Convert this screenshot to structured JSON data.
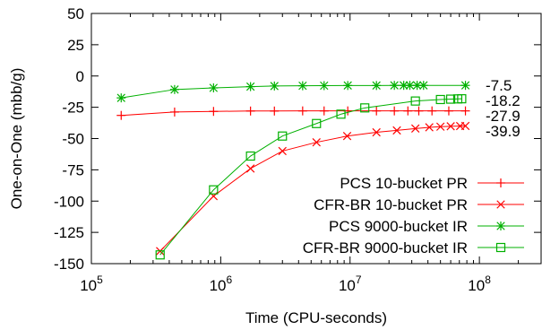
{
  "chart_data": {
    "type": "line",
    "xlabel": "Time (CPU-seconds)",
    "ylabel": "One-on-One (mbb/g)",
    "xscale": "log",
    "xlim": [
      100000,
      300000000
    ],
    "ylim": [
      -150,
      50
    ],
    "yticks": [
      50,
      25,
      0,
      -25,
      -50,
      -75,
      -100,
      -125,
      -150
    ],
    "xticks": [
      {
        "value": 100000,
        "base": "10",
        "exp": "5"
      },
      {
        "value": 1000000,
        "base": "10",
        "exp": "6"
      },
      {
        "value": 10000000,
        "base": "10",
        "exp": "7"
      },
      {
        "value": 100000000,
        "base": "10",
        "exp": "8"
      }
    ],
    "grid": false,
    "legend_position": "bottom-right",
    "series": [
      {
        "name": "PCS 10-bucket PR",
        "color": "#ff0000",
        "marker": "plus",
        "end_label": "-27.9",
        "x": [
          170000,
          440000,
          880000,
          1700000,
          2600000,
          4300000,
          6300000,
          9600000,
          16000000,
          22000000,
          28000000,
          34000000,
          43000000,
          58000000,
          78000000
        ],
        "y": [
          -31.5,
          -28.8,
          -28.3,
          -28.0,
          -28.0,
          -27.9,
          -27.9,
          -27.9,
          -27.9,
          -27.9,
          -27.9,
          -27.9,
          -27.9,
          -27.9,
          -27.9
        ]
      },
      {
        "name": "CFR-BR 10-bucket PR",
        "color": "#ff0000",
        "marker": "x",
        "end_label": "-39.9",
        "x": [
          340000,
          880000,
          1700000,
          3000000,
          5500000,
          9500000,
          16000000,
          23000000,
          32000000,
          41000000,
          50000000,
          60000000,
          71000000,
          78000000
        ],
        "y": [
          -140,
          -96,
          -74,
          -60,
          -53,
          -48,
          -45,
          -43.5,
          -42,
          -41,
          -40.5,
          -40.2,
          -40,
          -39.9
        ]
      },
      {
        "name": "PCS 9000-bucket IR",
        "color": "#00b000",
        "marker": "star",
        "end_label": "-7.5",
        "x": [
          170000,
          440000,
          880000,
          1700000,
          2600000,
          4300000,
          6300000,
          9600000,
          16000000,
          22000000,
          26000000,
          29000000,
          33000000,
          37000000,
          78000000
        ],
        "y": [
          -17.5,
          -10.8,
          -9.5,
          -8.5,
          -8.0,
          -7.8,
          -7.7,
          -7.6,
          -7.6,
          -7.5,
          -7.5,
          -7.5,
          -7.5,
          -7.5,
          -7.5
        ]
      },
      {
        "name": "CFR-BR 9000-bucket IR",
        "color": "#00b000",
        "marker": "square",
        "end_label": "-18.2",
        "x": [
          340000,
          880000,
          1700000,
          3000000,
          5500000,
          8500000,
          13000000,
          32000000,
          50000000,
          60000000,
          68000000,
          73000000
        ],
        "y": [
          -143,
          -91,
          -64,
          -48,
          -38,
          -30.5,
          -25.5,
          -20,
          -18.8,
          -18.5,
          -18.3,
          -18.2
        ]
      }
    ]
  }
}
